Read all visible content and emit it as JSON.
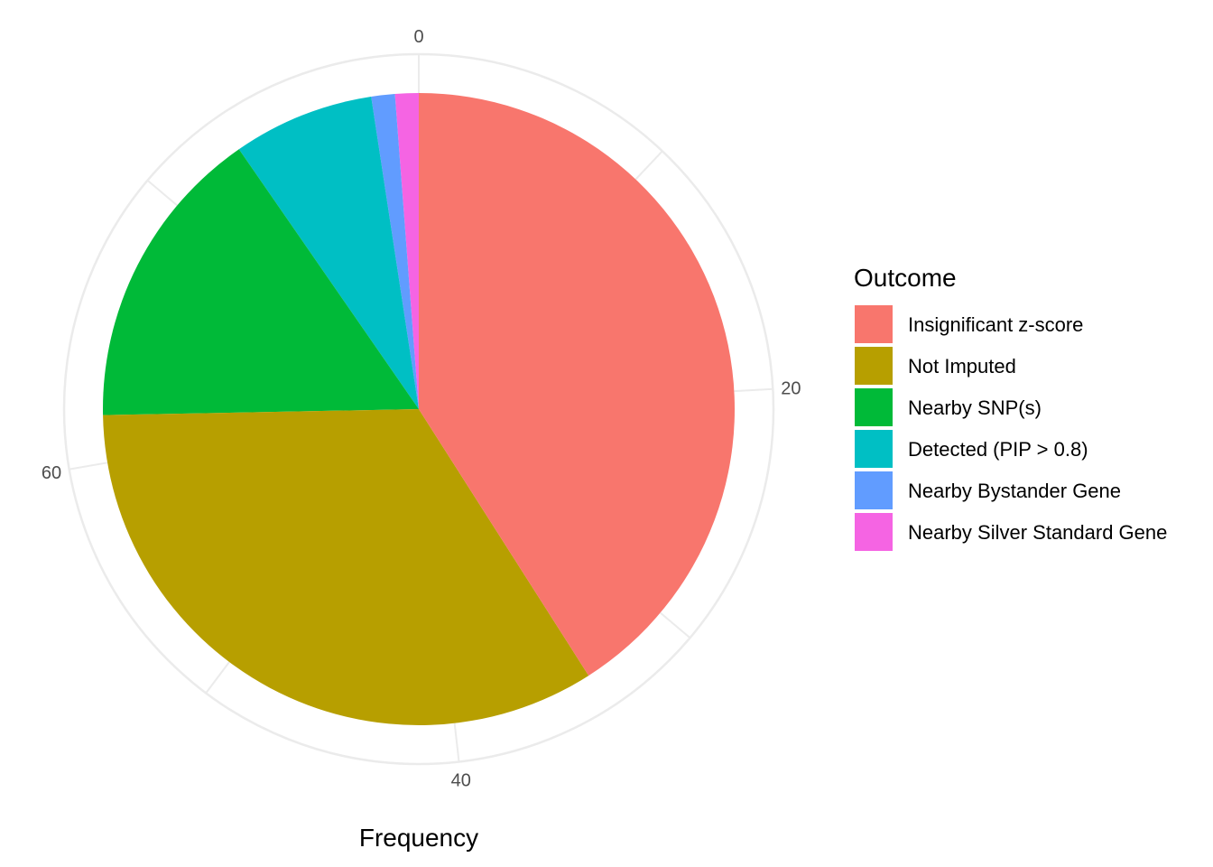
{
  "chart_data": {
    "type": "pie",
    "title": "",
    "xlabel": "Frequency",
    "theta_ticks": [
      0,
      20,
      40,
      60
    ],
    "theta_total": 83,
    "legend_title": "Outcome",
    "legend_position": "right",
    "grid": true,
    "slices": [
      {
        "label": "Insignificant z-score",
        "value": 34,
        "color": "#F8766D"
      },
      {
        "label": "Not Imputed",
        "value": 28,
        "color": "#B79F00"
      },
      {
        "label": "Nearby SNP(s)",
        "value": 13,
        "color": "#00BA38"
      },
      {
        "label": "Detected (PIP > 0.8)",
        "value": 6,
        "color": "#00BFC4"
      },
      {
        "label": "Nearby Bystander Gene",
        "value": 1,
        "color": "#619CFF"
      },
      {
        "label": "Nearby Silver Standard Gene",
        "value": 1,
        "color": "#F564E3"
      }
    ]
  }
}
